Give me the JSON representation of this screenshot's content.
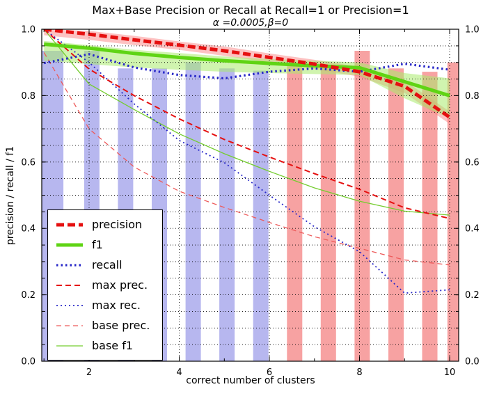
{
  "chart_data": {
    "type": "line",
    "title": "Max+Base Precision or Recall at Recall=1 or Precision=1",
    "subtitle": "α =0.0005,β=0",
    "xlabel": "correct number of clusters",
    "ylabel": "precision / recall / f1",
    "xlim": [
      0.95,
      10.2
    ],
    "ylim": [
      0.0,
      1.0
    ],
    "xticks": [
      2,
      4,
      6,
      8,
      10
    ],
    "xticks_minor": [
      1,
      3,
      5,
      7,
      9
    ],
    "yticks": [
      0.0,
      0.2,
      0.4,
      0.6,
      0.8,
      1.0
    ],
    "grid_y": [
      0.05,
      0.1,
      0.15,
      0.2,
      0.25,
      0.3,
      0.35,
      0.4,
      0.45,
      0.5,
      0.55,
      0.6,
      0.65,
      0.7,
      0.75,
      0.8,
      0.85,
      0.9,
      0.95
    ],
    "grid_style": "dotted",
    "legend_position": "lower left",
    "x": [
      1,
      2,
      3,
      4,
      5,
      6,
      7,
      8,
      9,
      10
    ],
    "series": [
      {
        "name": "precision",
        "color": "#e51010",
        "width": 5,
        "dash": "11 5",
        "values": [
          1.0,
          0.985,
          0.968,
          0.952,
          0.935,
          0.915,
          0.895,
          0.872,
          0.828,
          0.735
        ]
      },
      {
        "name": "f1",
        "color": "#5fd414",
        "width": 5,
        "dash": "",
        "values": [
          0.955,
          0.943,
          0.927,
          0.915,
          0.905,
          0.897,
          0.89,
          0.884,
          0.842,
          0.8
        ]
      },
      {
        "name": "recall",
        "color": "#2828c8",
        "width": 3.2,
        "dash": "2.5 4",
        "values": [
          0.898,
          0.925,
          0.885,
          0.862,
          0.852,
          0.872,
          0.882,
          0.872,
          0.896,
          0.878
        ]
      },
      {
        "name": "max prec.",
        "color": "#e51010",
        "width": 2,
        "dash": "8 5",
        "values": [
          1.0,
          0.88,
          0.8,
          0.73,
          0.668,
          0.615,
          0.565,
          0.518,
          0.462,
          0.43
        ]
      },
      {
        "name": "max rec.",
        "color": "#2828c8",
        "width": 1.8,
        "dash": "2 4",
        "values": [
          1.0,
          0.9,
          0.775,
          0.665,
          0.598,
          0.5,
          0.405,
          0.33,
          0.205,
          0.215
        ]
      },
      {
        "name": "base prec.",
        "color": "#ed5a5a",
        "width": 1.3,
        "dash": "7 5",
        "values": [
          0.93,
          0.7,
          0.585,
          0.512,
          0.463,
          0.418,
          0.375,
          0.34,
          0.305,
          0.29
        ]
      },
      {
        "name": "base f1",
        "color": "#74cd2e",
        "width": 1.3,
        "dash": "",
        "values": [
          1.0,
          0.835,
          0.758,
          0.685,
          0.625,
          0.572,
          0.522,
          0.482,
          0.452,
          0.44
        ]
      }
    ],
    "bands": [
      {
        "name": "f1-band",
        "color": "rgba(170,235,110,0.55)",
        "upper": [
          0.965,
          0.952,
          0.938,
          0.928,
          0.918,
          0.91,
          0.905,
          0.9,
          0.868,
          0.852
        ],
        "lower": [
          0.905,
          0.895,
          0.885,
          0.878,
          0.872,
          0.868,
          0.865,
          0.862,
          0.792,
          0.732
        ]
      },
      {
        "name": "precision-band",
        "color": "rgba(250,120,120,0.45)",
        "upper": [
          1.0,
          0.995,
          0.98,
          0.963,
          0.948,
          0.927,
          0.908,
          0.887,
          0.845,
          0.752
        ],
        "lower": [
          0.982,
          0.968,
          0.952,
          0.938,
          0.92,
          0.9,
          0.88,
          0.857,
          0.808,
          0.715
        ]
      }
    ],
    "bars": {
      "colors": {
        "b": "#b7b7ef",
        "r": "#f7a2a2"
      },
      "items": [
        {
          "x": 1.18,
          "w": 0.5,
          "h": 0.935,
          "c": "b"
        },
        {
          "x": 2.06,
          "w": 0.34,
          "h": 0.935,
          "c": "b"
        },
        {
          "x": 2.81,
          "w": 0.34,
          "h": 0.882,
          "c": "b"
        },
        {
          "x": 3.56,
          "w": 0.34,
          "h": 0.882,
          "c": "b"
        },
        {
          "x": 4.31,
          "w": 0.34,
          "h": 0.9,
          "c": "b"
        },
        {
          "x": 5.06,
          "w": 0.34,
          "h": 0.882,
          "c": "b"
        },
        {
          "x": 5.81,
          "w": 0.34,
          "h": 0.875,
          "c": "b"
        },
        {
          "x": 6.56,
          "w": 0.34,
          "h": 0.9,
          "c": "r"
        },
        {
          "x": 7.31,
          "w": 0.34,
          "h": 0.885,
          "c": "r"
        },
        {
          "x": 8.06,
          "w": 0.34,
          "h": 0.935,
          "c": "r"
        },
        {
          "x": 8.81,
          "w": 0.34,
          "h": 0.882,
          "c": "r"
        },
        {
          "x": 9.56,
          "w": 0.34,
          "h": 0.872,
          "c": "r"
        },
        {
          "x": 10.12,
          "w": 0.34,
          "h": 0.9,
          "c": "r"
        }
      ]
    }
  }
}
